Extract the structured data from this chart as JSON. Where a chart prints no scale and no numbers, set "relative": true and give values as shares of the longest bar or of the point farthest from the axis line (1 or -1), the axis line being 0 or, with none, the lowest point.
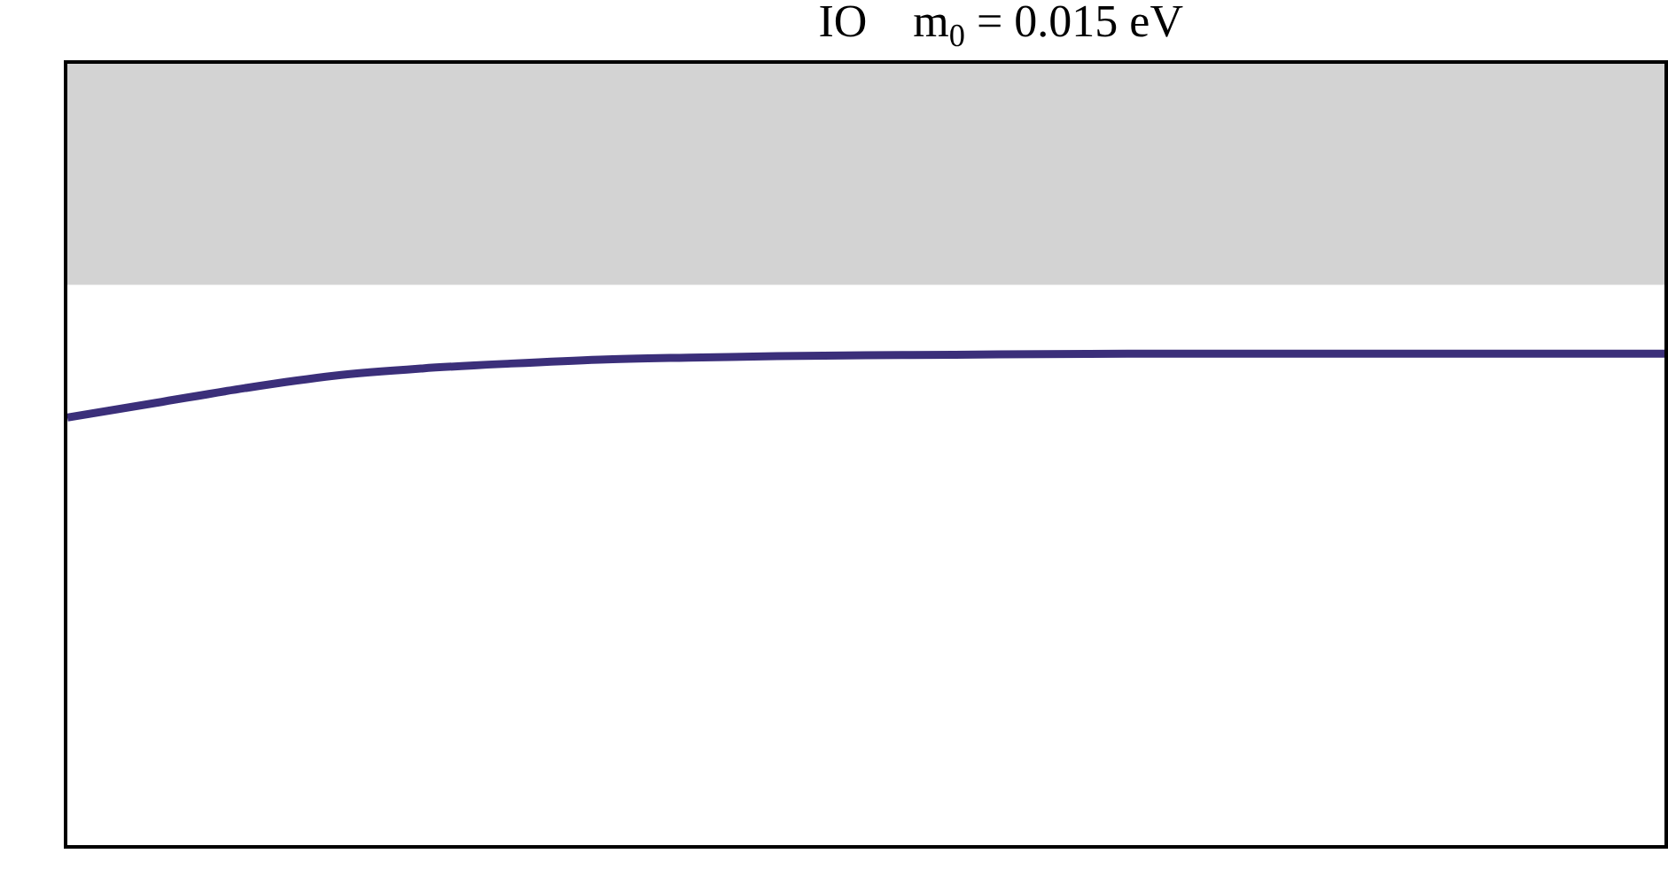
{
  "chart_data": {
    "type": "line",
    "title": "IO    m$_{0}$ = 0.015 eV",
    "relative": true,
    "categories": [
      null,
      null,
      null,
      null,
      null,
      null,
      null,
      null,
      null,
      null,
      null,
      null,
      null,
      null,
      null,
      null,
      null,
      null,
      null
    ],
    "series": [
      {
        "color": "#3b2f7a",
        "values": [
          0.87,
          0.9,
          0.93,
          0.955,
          0.97,
          0.98,
          0.988,
          0.992,
          0.995,
          0.997,
          0.998,
          0.999,
          1,
          1,
          1,
          1,
          1,
          1,
          1
        ]
      }
    ],
    "bands": [
      {
        "axis": "y",
        "from": 1.14,
        "to": 1.59,
        "color": "#d3d3d3"
      }
    ],
    "marker": "none",
    "line_style": "solid"
  }
}
